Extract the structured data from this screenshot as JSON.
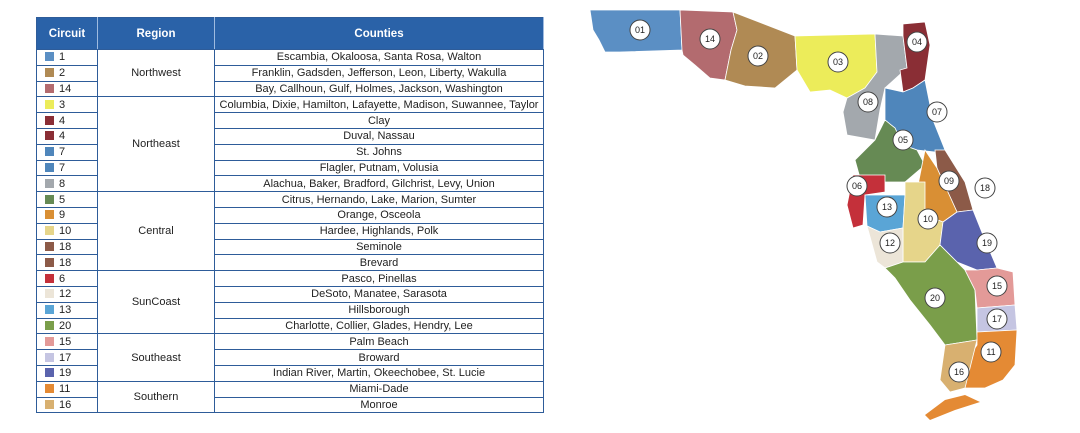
{
  "table": {
    "headers": {
      "circuit": "Circuit",
      "region": "Region",
      "counties": "Counties"
    },
    "regions": [
      {
        "name": "Northwest",
        "rows": [
          {
            "circuit": "1",
            "color": "#5b8fc4",
            "counties": "Escambia, Okaloosa, Santa Rosa, Walton"
          },
          {
            "circuit": "2",
            "color": "#b08a54",
            "counties": "Franklin, Gadsden, Jefferson, Leon, Liberty, Wakulla"
          },
          {
            "circuit": "14",
            "color": "#b36b6f",
            "counties": "Bay, Callhoun, Gulf, Holmes, Jackson, Washington"
          }
        ]
      },
      {
        "name": "Northeast",
        "rows": [
          {
            "circuit": "3",
            "color": "#ecec5a",
            "counties": "Columbia, Dixie, Hamilton, Lafayette, Madison, Suwannee, Taylor"
          },
          {
            "circuit": "4",
            "color": "#8a2e35",
            "counties": "Clay"
          },
          {
            "circuit": "4",
            "color": "#8a2e35",
            "counties": "Duval, Nassau"
          },
          {
            "circuit": "7",
            "color": "#4f86bb",
            "counties": "St. Johns"
          },
          {
            "circuit": "7",
            "color": "#4f86bb",
            "counties": "Flagler, Putnam, Volusia"
          },
          {
            "circuit": "8",
            "color": "#a3a8ad",
            "counties": "Alachua, Baker, Bradford, Gilchrist, Levy, Union"
          }
        ]
      },
      {
        "name": "Central",
        "rows": [
          {
            "circuit": "5",
            "color": "#668a54",
            "counties": "Citrus, Hernando, Lake, Marion, Sumter"
          },
          {
            "circuit": "9",
            "color": "#d98f34",
            "counties": "Orange, Osceola"
          },
          {
            "circuit": "10",
            "color": "#e6d58a",
            "counties": "Hardee, Highlands, Polk"
          },
          {
            "circuit": "18",
            "color": "#8c5a48",
            "counties": "Seminole"
          },
          {
            "circuit": "18",
            "color": "#8c5a48",
            "counties": "Brevard"
          }
        ]
      },
      {
        "name": "SunCoast",
        "rows": [
          {
            "circuit": "6",
            "color": "#c4303a",
            "counties": "Pasco, Pinellas"
          },
          {
            "circuit": "12",
            "color": "#ece5d8",
            "counties": "DeSoto, Manatee, Sarasota"
          },
          {
            "circuit": "13",
            "color": "#5aa5d6",
            "counties": "Hillsborough"
          },
          {
            "circuit": "20",
            "color": "#7a9e4a",
            "counties": "Charlotte, Collier, Glades, Hendry, Lee"
          }
        ]
      },
      {
        "name": "Southeast",
        "rows": [
          {
            "circuit": "15",
            "color": "#e39a98",
            "counties": "Palm Beach"
          },
          {
            "circuit": "17",
            "color": "#c5c5e2",
            "counties": "Broward"
          },
          {
            "circuit": "19",
            "color": "#5a63ad",
            "counties": "Indian River, Martin, Okeechobee, St. Lucie"
          }
        ]
      },
      {
        "name": "Southern",
        "rows": [
          {
            "circuit": "11",
            "color": "#e48a34",
            "counties": "Miami-Dade"
          },
          {
            "circuit": "16",
            "color": "#d8b070",
            "counties": "Monroe"
          }
        ]
      }
    ]
  },
  "map": {
    "labels": [
      "01",
      "14",
      "02",
      "03",
      "04",
      "08",
      "07",
      "05",
      "06",
      "09",
      "18",
      "13",
      "10",
      "12",
      "19",
      "20",
      "15",
      "17",
      "11",
      "16"
    ]
  }
}
